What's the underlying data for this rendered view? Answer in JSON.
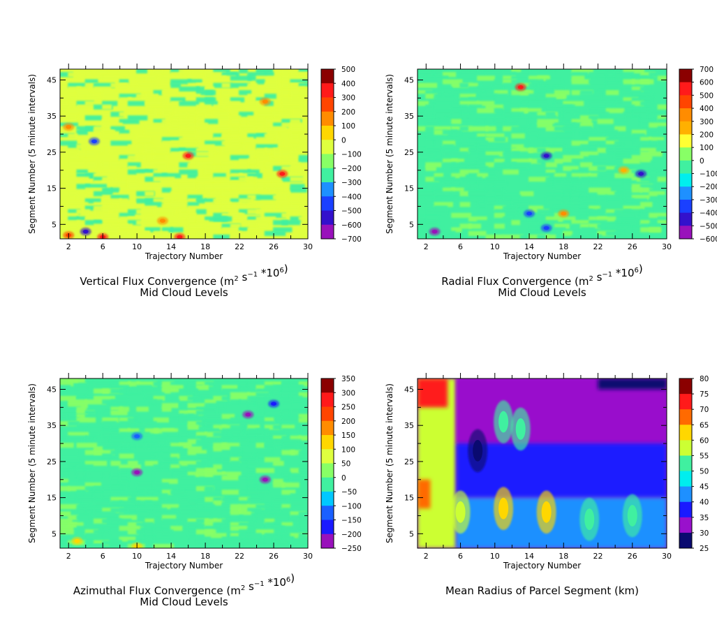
{
  "chart_data": [
    {
      "type": "heatmap",
      "title_line1": "Vertical Flux Convergence (m",
      "title_sup1": "2",
      "title_mid": " s",
      "title_sup2": "−1",
      "title_after": " *10",
      "title_sup3": "6",
      "title_close": ")",
      "subtitle": "Mid Cloud Levels",
      "xlabel": "Trajectory Number",
      "ylabel": "Segment Number (5 minute intervals)",
      "xlim": [
        1,
        30
      ],
      "ylim": [
        1,
        48
      ],
      "x_ticks": [
        2,
        6,
        10,
        14,
        18,
        22,
        26,
        30
      ],
      "y_ticks": [
        5,
        15,
        25,
        35,
        45
      ],
      "background_level": "0",
      "colorbar": {
        "labels": [
          "500",
          "400",
          "300",
          "200",
          "100",
          "0",
          "−100",
          "−200",
          "−300",
          "−400",
          "−500",
          "−600",
          "−700"
        ],
        "colors": [
          "#8b0000",
          "#ff1a1a",
          "#ff4500",
          "#ff8c00",
          "#ffd700",
          "#dfff3f",
          "#88ff66",
          "#40f0a0",
          "#1e90ff",
          "#1a40ff",
          "#3311cc",
          "#9911bb",
          "#0a0a70"
        ]
      },
      "fill_colors": [
        "#88ff66",
        "#dfff3f",
        "#40f0a0"
      ],
      "hotspots": [
        {
          "x": 16,
          "y": 24,
          "level": "400"
        },
        {
          "x": 27,
          "y": 19,
          "level": "400"
        },
        {
          "x": 5,
          "y": 28,
          "level": "−400"
        },
        {
          "x": 2,
          "y": 2,
          "level": "300"
        },
        {
          "x": 6,
          "y": 1.5,
          "level": "400"
        },
        {
          "x": 15,
          "y": 1.5,
          "level": "400"
        },
        {
          "x": 4,
          "y": 3,
          "level": "−500"
        },
        {
          "x": 13,
          "y": 6,
          "level": "200"
        },
        {
          "x": 2,
          "y": 32,
          "level": "200"
        },
        {
          "x": 25,
          "y": 39,
          "level": "200"
        }
      ]
    },
    {
      "type": "heatmap",
      "title_line1": "Radial Flux Convergence (m",
      "title_sup1": "2",
      "title_mid": " s",
      "title_sup2": "−1",
      "title_after": " *10",
      "title_sup3": "6",
      "title_close": ")",
      "subtitle": "Mid Cloud Levels",
      "xlabel": "Trajectory Number",
      "ylabel": "Segment Number (5 minute intervals)",
      "xlim": [
        1,
        30
      ],
      "ylim": [
        1,
        48
      ],
      "x_ticks": [
        2,
        6,
        10,
        14,
        18,
        22,
        26,
        30
      ],
      "y_ticks": [
        5,
        15,
        25,
        35,
        45
      ],
      "background_level": "0",
      "colorbar": {
        "labels": [
          "700",
          "600",
          "500",
          "400",
          "300",
          "200",
          "100",
          "0",
          "−100",
          "−200",
          "−300",
          "−400",
          "−500",
          "−600"
        ],
        "colors": [
          "#8b0000",
          "#ff1a1a",
          "#ff4500",
          "#ff8c00",
          "#ffb000",
          "#ffff33",
          "#88ff66",
          "#40f0a0",
          "#00eeee",
          "#1e90ff",
          "#1a40ff",
          "#3311cc",
          "#9911bb",
          "#0a0a70"
        ]
      },
      "fill_colors": [
        "#00eeee",
        "#40f0a0",
        "#88ff66"
      ],
      "hotspots": [
        {
          "x": 13,
          "y": 43,
          "level": "600"
        },
        {
          "x": 16,
          "y": 24,
          "level": "−400"
        },
        {
          "x": 3,
          "y": 3,
          "level": "−500"
        },
        {
          "x": 27,
          "y": 19,
          "level": "−400"
        },
        {
          "x": 25,
          "y": 20,
          "level": "300"
        },
        {
          "x": 18,
          "y": 8,
          "level": "400"
        },
        {
          "x": 16,
          "y": 4,
          "level": "−300"
        },
        {
          "x": 14,
          "y": 8,
          "level": "−300"
        }
      ]
    },
    {
      "type": "heatmap",
      "title_line1": "Azimuthal Flux Convergence (m",
      "title_sup1": "2",
      "title_mid": " s",
      "title_sup2": "−1",
      "title_after": " *10",
      "title_sup3": "6",
      "title_close": ")",
      "subtitle": "Mid Cloud Levels",
      "xlabel": "Trajectory Number",
      "ylabel": "Segment Number (5 minute intervals)",
      "xlim": [
        1,
        30
      ],
      "ylim": [
        1,
        48
      ],
      "x_ticks": [
        2,
        6,
        10,
        14,
        18,
        22,
        26,
        30
      ],
      "y_ticks": [
        5,
        15,
        25,
        35,
        45
      ],
      "background_level": "0",
      "colorbar": {
        "labels": [
          "350",
          "300",
          "250",
          "200",
          "150",
          "100",
          "50",
          "0",
          "−50",
          "−100",
          "−150",
          "−200",
          "−250"
        ],
        "colors": [
          "#8b0000",
          "#ff1a1a",
          "#ff4500",
          "#ff8c00",
          "#ffd700",
          "#dfff3f",
          "#88ff66",
          "#40f0a0",
          "#00c8ff",
          "#1a60ff",
          "#1a1aff",
          "#9911bb",
          "#0a0a70"
        ]
      },
      "fill_colors": [
        "#00c8ff",
        "#40f0a0",
        "#88ff66"
      ],
      "hotspots": [
        {
          "x": 23,
          "y": 38,
          "level": "−200"
        },
        {
          "x": 26,
          "y": 41,
          "level": "−150"
        },
        {
          "x": 25,
          "y": 20,
          "level": "−200"
        },
        {
          "x": 10,
          "y": 22,
          "level": "−200"
        },
        {
          "x": 10,
          "y": 32,
          "level": "−100"
        },
        {
          "x": 10,
          "y": 1.5,
          "level": "150"
        },
        {
          "x": 3,
          "y": 3,
          "level": "150"
        }
      ]
    },
    {
      "type": "heatmap",
      "title_line1": "Mean Radius of Parcel Segment (km)",
      "title_sup1": "",
      "title_mid": "",
      "title_sup2": "",
      "title_after": "",
      "title_sup3": "",
      "title_close": "",
      "subtitle": "",
      "xlabel": "Trajectory Number",
      "ylabel": "Segment Number (5 minute intervals)",
      "xlim": [
        1,
        30
      ],
      "ylim": [
        1,
        48
      ],
      "x_ticks": [
        2,
        6,
        10,
        14,
        18,
        22,
        26,
        30
      ],
      "y_ticks": [
        5,
        15,
        25,
        35,
        45
      ],
      "background_level": "35",
      "colorbar": {
        "labels": [
          "80",
          "75",
          "70",
          "65",
          "60",
          "55",
          "50",
          "45",
          "40",
          "35",
          "30",
          "25"
        ],
        "colors": [
          "#8b0000",
          "#ff1a1a",
          "#ff6a00",
          "#ffd700",
          "#ccff33",
          "#40f0a0",
          "#00eeee",
          "#1e90ff",
          "#1a1aff",
          "#9911cc",
          "#0a0a70"
        ]
      },
      "regions": [
        {
          "x0": 1,
          "x1": 5.5,
          "y0": 1,
          "y1": 48,
          "level": "60"
        },
        {
          "x0": 1,
          "x1": 4.5,
          "y0": 40,
          "y1": 48,
          "level": "75"
        },
        {
          "x0": 1,
          "x1": 2.5,
          "y0": 12,
          "y1": 20,
          "level": "70"
        },
        {
          "x0": 5.5,
          "x1": 30,
          "y0": 30,
          "y1": 48,
          "level": "35"
        },
        {
          "x0": 5.5,
          "x1": 30,
          "y0": 15,
          "y1": 30,
          "level": "40"
        },
        {
          "x0": 5.5,
          "x1": 30,
          "y0": 1,
          "y1": 15,
          "level": "45"
        },
        {
          "x0": 22,
          "x1": 30,
          "y0": 45,
          "y1": 48,
          "level": "30"
        }
      ],
      "hotspots": [
        {
          "x": 11,
          "y": 12,
          "level": "65"
        },
        {
          "x": 16,
          "y": 11,
          "level": "65"
        },
        {
          "x": 6,
          "y": 11,
          "level": "60"
        },
        {
          "x": 21,
          "y": 9,
          "level": "55"
        },
        {
          "x": 26,
          "y": 10,
          "level": "55"
        },
        {
          "x": 11,
          "y": 36,
          "level": "55"
        },
        {
          "x": 13,
          "y": 34,
          "level": "55"
        },
        {
          "x": 8,
          "y": 28,
          "level": "30"
        }
      ]
    }
  ]
}
